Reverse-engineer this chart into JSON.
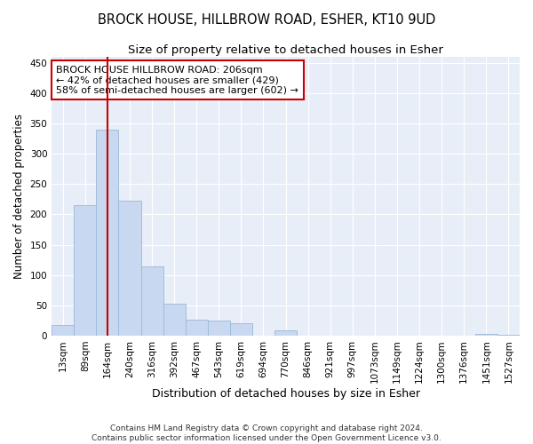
{
  "title": "BROCK HOUSE, HILLBROW ROAD, ESHER, KT10 9UD",
  "subtitle": "Size of property relative to detached houses in Esher",
  "xlabel": "Distribution of detached houses by size in Esher",
  "ylabel": "Number of detached properties",
  "footer_line1": "Contains HM Land Registry data © Crown copyright and database right 2024.",
  "footer_line2": "Contains public sector information licensed under the Open Government Licence v3.0.",
  "categories": [
    "13sqm",
    "89sqm",
    "164sqm",
    "240sqm",
    "316sqm",
    "392sqm",
    "467sqm",
    "543sqm",
    "619sqm",
    "694sqm",
    "770sqm",
    "846sqm",
    "921sqm",
    "997sqm",
    "1073sqm",
    "1149sqm",
    "1224sqm",
    "1300sqm",
    "1376sqm",
    "1451sqm",
    "1527sqm"
  ],
  "values": [
    18,
    215,
    340,
    222,
    114,
    53,
    26,
    25,
    20,
    0,
    8,
    0,
    0,
    0,
    0,
    0,
    0,
    0,
    0,
    2,
    1
  ],
  "bar_color": "#c8d8f0",
  "bar_edge_color": "#9ab8d8",
  "vline_x_index": 2,
  "vline_color": "#cc0000",
  "annotation_title": "BROCK HOUSE HILLBROW ROAD: 206sqm",
  "annotation_line1": "← 42% of detached houses are smaller (429)",
  "annotation_line2": "58% of semi-detached houses are larger (602) →",
  "annotation_box_color": "#cc0000",
  "background_color": "#ffffff",
  "plot_bg_color": "#e8eef8",
  "ylim": [
    0,
    460
  ],
  "yticks": [
    0,
    50,
    100,
    150,
    200,
    250,
    300,
    350,
    400,
    450
  ],
  "title_fontsize": 10.5,
  "subtitle_fontsize": 9.5,
  "xlabel_fontsize": 9,
  "ylabel_fontsize": 8.5,
  "tick_fontsize": 7.5,
  "annot_fontsize": 8,
  "footer_fontsize": 6.5
}
